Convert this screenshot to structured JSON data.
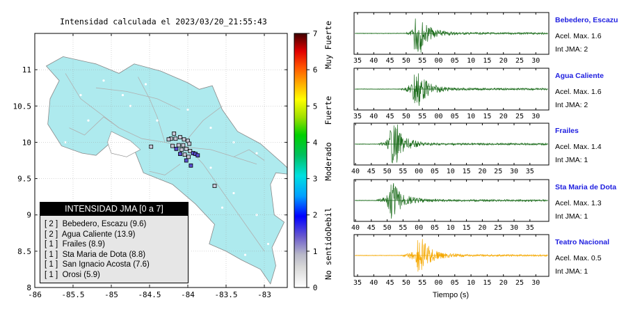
{
  "map_title": "Intensidad calculada el 2023/03/20_21:55:43",
  "map": {
    "lon_ticks": [
      "-86",
      "-85.5",
      "-85",
      "-84.5",
      "-84",
      "-83.5",
      "-83"
    ],
    "lat_ticks": [
      "8",
      "8.5",
      "9",
      "9.5",
      "10",
      "10.5",
      "11"
    ],
    "lon_range": [
      -86,
      -82.7
    ],
    "lat_range": [
      8.0,
      11.5
    ],
    "land_color": "#aeeaee",
    "stations": [
      {
        "lon": -84.18,
        "lat": 10.12,
        "int": 1
      },
      {
        "lon": -84.22,
        "lat": 10.05,
        "int": 1
      },
      {
        "lon": -84.16,
        "lat": 10.05,
        "int": 1
      },
      {
        "lon": -84.1,
        "lat": 10.07,
        "int": 1
      },
      {
        "lon": -84.05,
        "lat": 10.04,
        "int": 1
      },
      {
        "lon": -84.0,
        "lat": 10.02,
        "int": 1
      },
      {
        "lon": -83.98,
        "lat": 9.98,
        "int": 1
      },
      {
        "lon": -84.06,
        "lat": 9.96,
        "int": 1
      },
      {
        "lon": -84.12,
        "lat": 9.96,
        "int": 1
      },
      {
        "lon": -84.2,
        "lat": 9.95,
        "int": 1
      },
      {
        "lon": -84.15,
        "lat": 9.91,
        "int": 2
      },
      {
        "lon": -84.08,
        "lat": 9.9,
        "int": 1
      },
      {
        "lon": -84.02,
        "lat": 9.91,
        "int": 1
      },
      {
        "lon": -83.97,
        "lat": 9.88,
        "int": 1
      },
      {
        "lon": -83.93,
        "lat": 9.85,
        "int": 2
      },
      {
        "lon": -83.9,
        "lat": 9.84,
        "int": 2
      },
      {
        "lon": -84.1,
        "lat": 9.84,
        "int": 2
      },
      {
        "lon": -84.04,
        "lat": 9.83,
        "int": 1
      },
      {
        "lon": -83.99,
        "lat": 9.8,
        "int": 1
      },
      {
        "lon": -83.87,
        "lat": 9.82,
        "int": 2
      },
      {
        "lon": -84.02,
        "lat": 9.75,
        "int": 2
      },
      {
        "lon": -83.96,
        "lat": 9.68,
        "int": 2
      },
      {
        "lon": -84.48,
        "lat": 9.94,
        "int": 1
      },
      {
        "lon": -84.25,
        "lat": 10.04,
        "int": 1
      },
      {
        "lon": -83.65,
        "lat": 9.4,
        "int": 1
      }
    ]
  },
  "colorbar": {
    "ticks": [
      "0",
      "1",
      "2",
      "3",
      "4",
      "5",
      "6",
      "7"
    ],
    "labels": [
      "No sentido",
      "Debil",
      "Moderado",
      "Fuerte",
      "Muy Fuerte"
    ]
  },
  "legend": {
    "title": "INTENSIDAD JMA [0 a 7]",
    "items": [
      "[ 2 ]  Bebedero, Escazu (9.6)",
      "[ 2 ]  Agua Caliente (13.9)",
      "[ 1 ]  Frailes (8.9)",
      "[ 1 ]  Sta Maria de Dota (8.8)",
      "[ 1 ]  San Ignacio Acosta (7.6)",
      "[ 1 ]  Orosi (5.9)"
    ]
  },
  "seismograms": {
    "xlabel": "Tiempo (s)",
    "panels": [
      {
        "name": "Bebedero, Escazu",
        "acel": "Acel. Max. 1.6",
        "jma": "Int JMA: 2",
        "color": "#1a6b1a",
        "ticks": [
          "35",
          "40",
          "45",
          "50",
          "55",
          "00",
          "05",
          "10",
          "15",
          "20",
          "25",
          "30"
        ],
        "onset": 0.265,
        "peak": 0.325,
        "amp": 1.0
      },
      {
        "name": "Agua Caliente",
        "acel": "Acel. Max. 1.6",
        "jma": "Int JMA: 2",
        "color": "#1a6b1a",
        "ticks": [
          "35",
          "40",
          "45",
          "50",
          "55",
          "00",
          "05",
          "10",
          "15",
          "20",
          "25",
          "30"
        ],
        "onset": 0.235,
        "peak": 0.32,
        "amp": 1.0
      },
      {
        "name": "Frailes",
        "acel": "Acel. Max. 1.4",
        "jma": "Int JMA: 1",
        "color": "#1a6b1a",
        "ticks": [
          "40",
          "45",
          "50",
          "55",
          "00",
          "05",
          "10",
          "15",
          "20",
          "25",
          "30",
          "35"
        ],
        "onset": 0.12,
        "peak": 0.2,
        "amp": 1.0
      },
      {
        "name": "Sta Maria de Dota",
        "acel": "Acel. Max. 1.3",
        "jma": "Int JMA: 1",
        "color": "#1a6b1a",
        "ticks": [
          "40",
          "45",
          "50",
          "55",
          "00",
          "05",
          "10",
          "15",
          "20",
          "25",
          "30",
          "35"
        ],
        "onset": 0.11,
        "peak": 0.19,
        "amp": 1.0
      },
      {
        "name": "Teatro Nacional",
        "acel": "Acel. Max. 0.5",
        "jma": "Int JMA: 1",
        "color": "#f5a800",
        "ticks": [
          "35",
          "40",
          "45",
          "50",
          "55",
          "00",
          "05",
          "10",
          "15",
          "20",
          "25",
          "30"
        ],
        "onset": 0.24,
        "peak": 0.34,
        "amp": 1.0
      }
    ]
  },
  "chart_data": {
    "type": "scatter",
    "title": "Intensidad calculada el 2023/03/20_21:55:43",
    "xlim": [
      -86,
      -82.7
    ],
    "ylim": [
      8.0,
      11.5
    ],
    "colorbar_range": [
      0,
      7
    ],
    "legend_title": "INTENSIDAD JMA [0 a 7]",
    "stations_reported": [
      {
        "name": "Bebedero, Escazu",
        "intensity": 2,
        "value": 9.6,
        "acel_max": 1.6
      },
      {
        "name": "Agua Caliente",
        "intensity": 2,
        "value": 13.9,
        "acel_max": 1.6
      },
      {
        "name": "Frailes",
        "intensity": 1,
        "value": 8.9,
        "acel_max": 1.4
      },
      {
        "name": "Sta Maria de Dota",
        "intensity": 1,
        "value": 8.8,
        "acel_max": 1.3
      },
      {
        "name": "San Ignacio Acosta",
        "intensity": 1,
        "value": 7.6
      },
      {
        "name": "Orosi",
        "intensity": 1,
        "value": 5.9
      },
      {
        "name": "Teatro Nacional",
        "intensity": 1,
        "acel_max": 0.5
      }
    ]
  }
}
